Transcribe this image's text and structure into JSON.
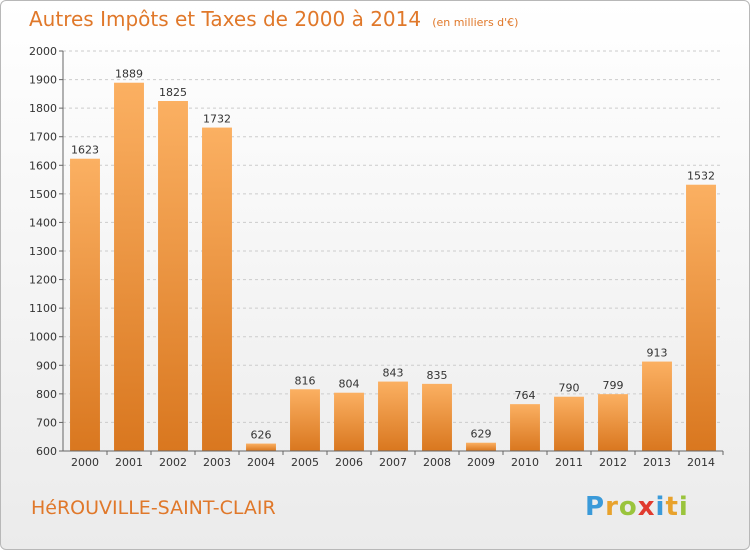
{
  "title": {
    "main": "Autres Impôts et Taxes de 2000 à 2014",
    "unit": "(en milliers d'€)"
  },
  "commune": "HéROUVILLE-SAINT-CLAIR",
  "logo": {
    "letters": [
      "P",
      "r",
      "o",
      "x",
      "i",
      "t",
      "i"
    ],
    "colors": [
      "#3a9ad9",
      "#e8a22c",
      "#9ac43c",
      "#e03a2e",
      "#3a9ad9",
      "#e8a22c",
      "#9ac43c"
    ]
  },
  "colors": {
    "bar_light": "#fbb062",
    "bar_dark": "#d9771f",
    "accent": "#e0782a",
    "grid": "#cccccc"
  },
  "chart_data": {
    "type": "bar",
    "categories": [
      "2000",
      "2001",
      "2002",
      "2003",
      "2004",
      "2005",
      "2006",
      "2007",
      "2008",
      "2009",
      "2010",
      "2011",
      "2012",
      "2013",
      "2014"
    ],
    "values": [
      1623,
      1889,
      1825,
      1732,
      626,
      816,
      804,
      843,
      835,
      629,
      764,
      790,
      799,
      913,
      1532
    ],
    "ylim": [
      600,
      2000
    ],
    "yticks": [
      600,
      700,
      800,
      900,
      1000,
      1100,
      1200,
      1300,
      1400,
      1500,
      1600,
      1700,
      1800,
      1900,
      2000
    ],
    "grid": true
  }
}
